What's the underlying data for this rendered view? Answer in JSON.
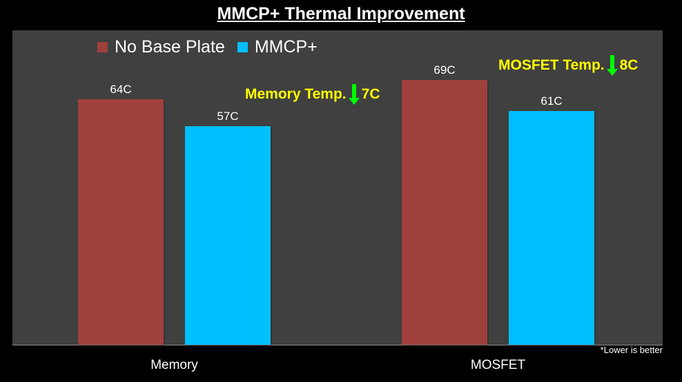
{
  "chart_data": {
    "type": "bar",
    "title": "MMCP+ Thermal Improvement",
    "categories": [
      "Memory",
      "MOSFET"
    ],
    "series": [
      {
        "name": "No Base Plate",
        "values": [
          64,
          69
        ],
        "labels": [
          "64C",
          "69C"
        ],
        "color": "#a0403c"
      },
      {
        "name": "MMCP+",
        "values": [
          57,
          61
        ],
        "labels": [
          "57C",
          "61C"
        ],
        "color": "#00bfff"
      }
    ],
    "xlabel": "",
    "ylabel": "",
    "ylim": [
      0,
      82
    ],
    "grid": false,
    "legend": "top-left",
    "annotations": [
      {
        "prefix": "Memory Temp.",
        "value": "7C",
        "arrow": "green-down-arrow-icon",
        "category": "Memory"
      },
      {
        "prefix": "MOSFET Temp.",
        "value": "8C",
        "arrow": "green-down-arrow-icon",
        "category": "MOSFET"
      }
    ],
    "footnote": "*Lower is better"
  },
  "colors": {
    "background": "#000000",
    "plot_background": "#404040",
    "annotation_text": "#ffff00",
    "arrow": "#00ff00"
  }
}
